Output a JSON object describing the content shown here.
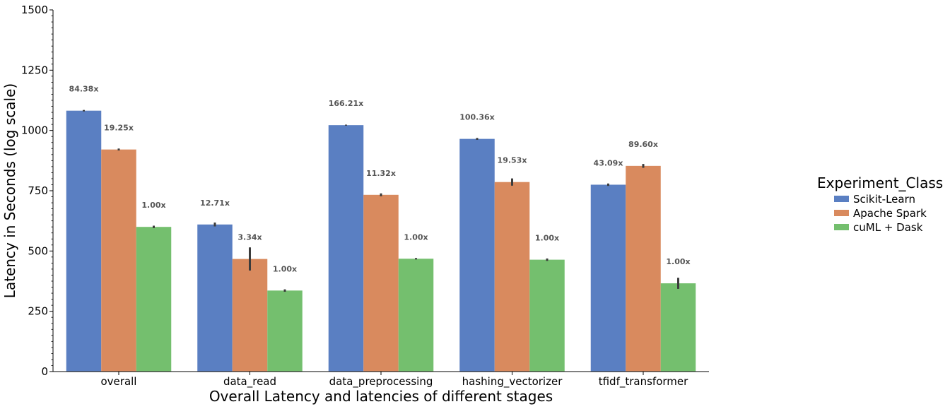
{
  "chart_data": {
    "type": "bar",
    "title": "",
    "xlabel": "Overall Latency and latencies of different stages",
    "ylabel": "Latency in Seconds (log scale)",
    "ylim": [
      0,
      1500
    ],
    "yticks": [
      0,
      250,
      500,
      750,
      1000,
      1250,
      1500
    ],
    "categories": [
      "overall",
      "data_read",
      "data_preprocessing",
      "hashing_vectorizer",
      "tfidf_transformer"
    ],
    "legend": {
      "title": "Experiment_Class",
      "placement": "right"
    },
    "series": [
      {
        "name": "Scikit-Learn",
        "color": "#5a7fc2",
        "values": [
          1082,
          610,
          1022,
          965,
          775
        ],
        "errors": [
          3,
          8,
          2,
          4,
          5
        ],
        "labels": [
          "84.38x",
          "12.71x",
          "166.21x",
          "100.36x",
          "43.09x"
        ]
      },
      {
        "name": "Apache Spark",
        "color": "#d98a5e",
        "values": [
          921,
          467,
          733,
          786,
          853
        ],
        "errors": [
          4,
          48,
          6,
          15,
          8
        ],
        "labels": [
          "19.25x",
          "3.34x",
          "11.32x",
          "19.53x",
          "89.60x"
        ]
      },
      {
        "name": "cuML + Dask",
        "color": "#74bf6e",
        "values": [
          600,
          336,
          468,
          464,
          366
        ],
        "errors": [
          5,
          5,
          3,
          5,
          23
        ],
        "labels": [
          "1.00x",
          "1.00x",
          "1.00x",
          "1.00x",
          "1.00x"
        ]
      }
    ]
  }
}
